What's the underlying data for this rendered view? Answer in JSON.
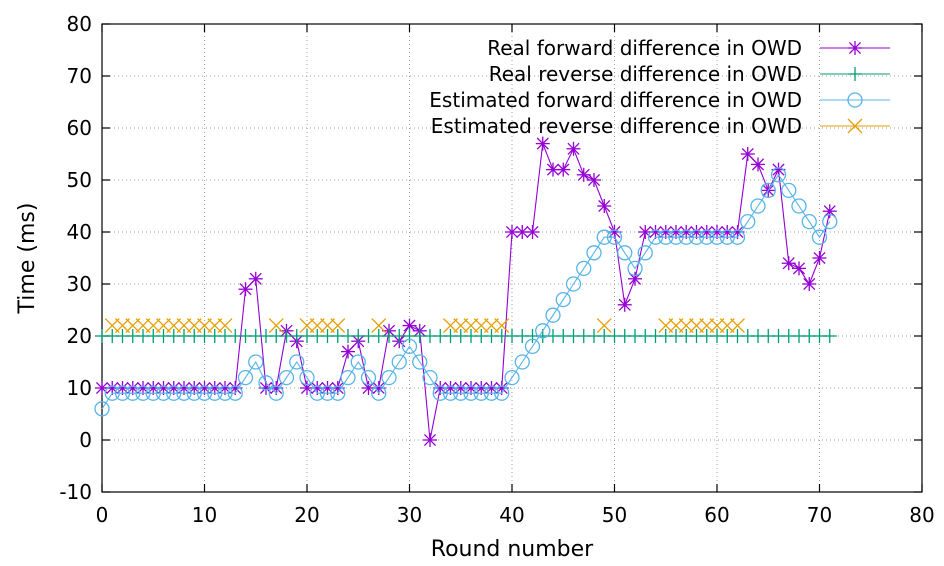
{
  "chart_data": {
    "type": "line",
    "title": "",
    "xlabel": "Round number",
    "ylabel": "Time (ms)",
    "xlim": [
      0,
      80
    ],
    "ylim": [
      -10,
      80
    ],
    "xticks": [
      0,
      10,
      20,
      30,
      40,
      50,
      60,
      70,
      80
    ],
    "yticks": [
      -10,
      0,
      10,
      20,
      30,
      40,
      50,
      60,
      70,
      80
    ],
    "grid": true,
    "legend_position": "top-right",
    "series": [
      {
        "name": "Real forward difference in OWD",
        "color": "#9400d3",
        "marker": "asterisk",
        "connected": true,
        "x": [
          0,
          1,
          2,
          3,
          4,
          5,
          6,
          7,
          8,
          9,
          10,
          11,
          12,
          13,
          14,
          15,
          16,
          17,
          18,
          19,
          20,
          21,
          22,
          23,
          24,
          25,
          26,
          27,
          28,
          29,
          30,
          31,
          32,
          33,
          34,
          35,
          36,
          37,
          38,
          39,
          40,
          41,
          42,
          43,
          44,
          45,
          46,
          47,
          48,
          49,
          50,
          51,
          52,
          53,
          54,
          55,
          56,
          57,
          58,
          59,
          60,
          61,
          62,
          63,
          64,
          65,
          66,
          67,
          68,
          69,
          70,
          71
        ],
        "y": [
          10,
          10,
          10,
          10,
          10,
          10,
          10,
          10,
          10,
          10,
          10,
          10,
          10,
          10,
          29,
          31,
          10,
          10,
          21,
          19,
          10,
          10,
          10,
          10,
          17,
          19,
          10,
          10,
          21,
          19,
          22,
          21,
          0,
          10,
          10,
          10,
          10,
          10,
          10,
          10,
          40,
          40,
          40,
          57,
          52,
          52,
          56,
          51,
          50,
          45,
          40,
          26,
          31,
          40,
          40,
          40,
          40,
          40,
          40,
          40,
          40,
          40,
          40,
          55,
          53,
          48,
          52,
          34,
          33,
          30,
          35,
          44
        ]
      },
      {
        "name": "Real reverse difference in OWD",
        "color": "#009e73",
        "marker": "plus",
        "connected": true,
        "x": [
          0,
          1,
          2,
          3,
          4,
          5,
          6,
          7,
          8,
          9,
          10,
          11,
          12,
          13,
          14,
          15,
          16,
          17,
          18,
          19,
          20,
          21,
          22,
          23,
          24,
          25,
          26,
          27,
          28,
          29,
          30,
          31,
          32,
          33,
          34,
          35,
          36,
          37,
          38,
          39,
          40,
          41,
          42,
          43,
          44,
          45,
          46,
          47,
          48,
          49,
          50,
          51,
          52,
          53,
          54,
          55,
          56,
          57,
          58,
          59,
          60,
          61,
          62,
          63,
          64,
          65,
          66,
          67,
          68,
          69,
          70,
          71
        ],
        "y": [
          20,
          20,
          20,
          20,
          20,
          20,
          20,
          20,
          20,
          20,
          20,
          20,
          20,
          20,
          20,
          20,
          20,
          20,
          20,
          20,
          20,
          20,
          20,
          20,
          20,
          20,
          20,
          20,
          20,
          20,
          20,
          20,
          20,
          20,
          20,
          20,
          20,
          20,
          20,
          20,
          20,
          20,
          20,
          20,
          20,
          20,
          20,
          20,
          20,
          20,
          20,
          20,
          20,
          20,
          20,
          20,
          20,
          20,
          20,
          20,
          20,
          20,
          20,
          20,
          20,
          20,
          20,
          20,
          20,
          20,
          20,
          20
        ]
      },
      {
        "name": "Estimated forward difference in OWD",
        "color": "#56b4e9",
        "marker": "circle",
        "connected": true,
        "x": [
          0,
          1,
          2,
          3,
          4,
          5,
          6,
          7,
          8,
          9,
          10,
          11,
          12,
          13,
          14,
          15,
          16,
          17,
          18,
          19,
          20,
          21,
          22,
          23,
          24,
          25,
          26,
          27,
          28,
          29,
          30,
          31,
          32,
          33,
          34,
          35,
          36,
          37,
          38,
          39,
          40,
          41,
          42,
          43,
          44,
          45,
          46,
          47,
          48,
          49,
          50,
          51,
          52,
          53,
          54,
          55,
          56,
          57,
          58,
          59,
          60,
          61,
          62,
          63,
          64,
          65,
          66,
          67,
          68,
          69,
          70,
          71
        ],
        "y": [
          6,
          9,
          9,
          9,
          9,
          9,
          9,
          9,
          9,
          9,
          9,
          9,
          9,
          9,
          12,
          15,
          11,
          9,
          12,
          15,
          12,
          9,
          9,
          9,
          12,
          15,
          12,
          9,
          12,
          15,
          18,
          15,
          12,
          9,
          9,
          9,
          9,
          9,
          9,
          9,
          12,
          15,
          18,
          21,
          24,
          27,
          30,
          33,
          36,
          39,
          39,
          36,
          33,
          36,
          39,
          39,
          39,
          39,
          39,
          39,
          39,
          39,
          39,
          42,
          45,
          48,
          51,
          48,
          45,
          42,
          39,
          42
        ]
      },
      {
        "name": "Estimated reverse difference in OWD",
        "color": "#e69f00",
        "marker": "cross",
        "connected": false,
        "x": [
          1,
          2,
          3,
          4,
          5,
          6,
          7,
          8,
          9,
          10,
          11,
          12,
          17,
          20,
          21,
          22,
          23,
          27,
          34,
          35,
          36,
          37,
          38,
          39,
          49,
          55,
          56,
          57,
          58,
          59,
          60,
          61,
          62
        ],
        "y": [
          22,
          22,
          22,
          22,
          22,
          22,
          22,
          22,
          22,
          22,
          22,
          22,
          22,
          22,
          22,
          22,
          22,
          22,
          22,
          22,
          22,
          22,
          22,
          22,
          22,
          22,
          22,
          22,
          22,
          22,
          22,
          22,
          22
        ]
      }
    ]
  }
}
